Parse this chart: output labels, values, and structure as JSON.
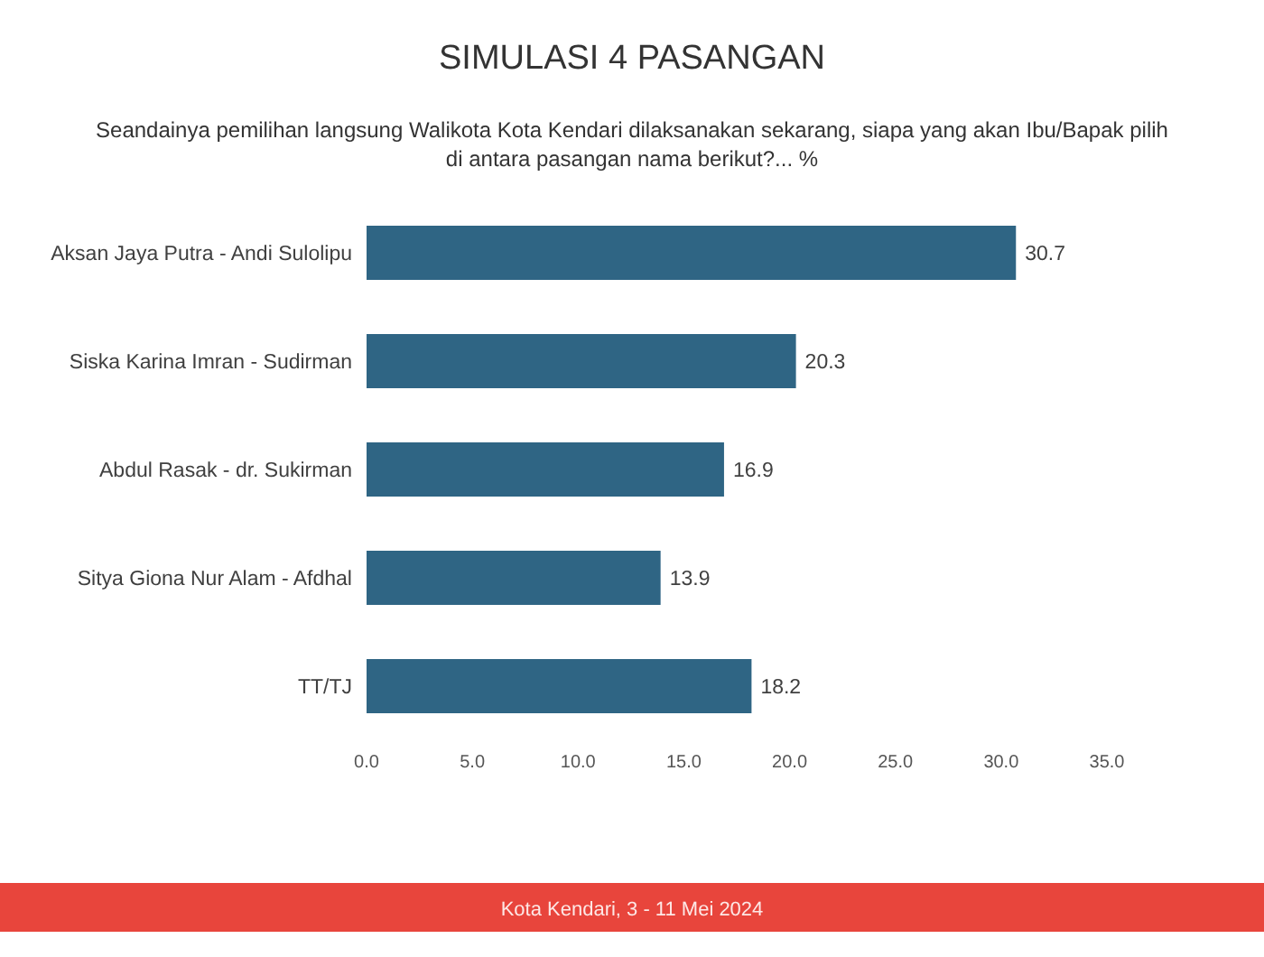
{
  "chart_data": {
    "type": "bar",
    "orientation": "horizontal",
    "title": "SIMULASI 4 PASANGAN",
    "subtitle": "Seandainya pemilihan langsung Walikota Kota Kendari dilaksanakan sekarang, siapa yang akan Ibu/Bapak pilih di antara pasangan nama berikut?... %",
    "categories": [
      "Aksan Jaya Putra - Andi Sulolipu",
      "Siska Karina Imran - Sudirman",
      "Abdul Rasak - dr. Sukirman",
      "Sitya Giona Nur Alam - Afdhal",
      "TT/TJ"
    ],
    "values": [
      30.7,
      20.3,
      16.9,
      13.9,
      18.2
    ],
    "color": "#2f6584",
    "data_labels": true,
    "xlim": [
      0,
      35
    ],
    "xticks": [
      {
        "value": 0,
        "label": "0.0"
      },
      {
        "value": 5,
        "label": "5.0"
      },
      {
        "value": 10,
        "label": "10.0"
      },
      {
        "value": 15,
        "label": "15.0"
      },
      {
        "value": 20,
        "label": "20.0"
      },
      {
        "value": 25,
        "label": "25.0"
      },
      {
        "value": 30,
        "label": "30.0"
      },
      {
        "value": 35,
        "label": "35.0"
      }
    ],
    "grid": false,
    "annotations": [
      "Kota Kendari, 3 - 11 Mei 2024"
    ]
  }
}
